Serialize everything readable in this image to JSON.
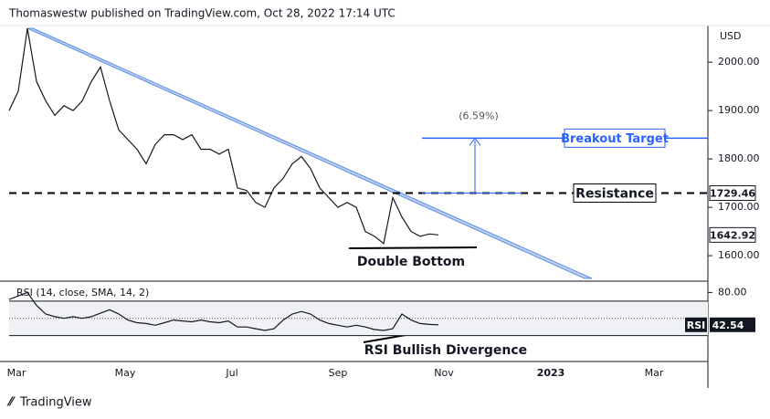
{
  "header": "Thomaswestw published on TradingView.com, Oct 28, 2022 17:14 UTC",
  "footer": "TradingView",
  "xtick_labels": [
    "Mar",
    "May",
    "Jul",
    "Sep",
    "Nov",
    "2023",
    "Mar"
  ],
  "chart_data": [
    {
      "type": "line",
      "axis_label": "USD",
      "color": "#131722",
      "values": [
        1900,
        1940,
        2070,
        1960,
        1920,
        1890,
        1910,
        1900,
        1920,
        1960,
        1990,
        1920,
        1860,
        1840,
        1820,
        1790,
        1830,
        1850,
        1850,
        1840,
        1850,
        1820,
        1820,
        1810,
        1820,
        1740,
        1735,
        1710,
        1700,
        1740,
        1760,
        1790,
        1805,
        1780,
        1740,
        1720,
        1700,
        1710,
        1700,
        1650,
        1640,
        1625,
        1720,
        1680,
        1650,
        1640,
        1645,
        1643
      ],
      "ylim": [
        1553,
        2072
      ],
      "yticks": [
        {
          "value": 1600,
          "label": "1600.00"
        },
        {
          "value": 1700,
          "label": "1700.00"
        },
        {
          "value": 1800,
          "label": "1800.00"
        },
        {
          "value": 1900,
          "label": "1900.00"
        },
        {
          "value": 2000,
          "label": "2000.00"
        }
      ],
      "price_markers": [
        {
          "value": 1729.46,
          "label": "1729.46"
        },
        {
          "value": 1642.92,
          "label": "1642.92"
        }
      ],
      "resistance_label": "Resistance",
      "target": {
        "value": 1843,
        "label": "Breakout Target",
        "change": "(6.59%)"
      },
      "pattern_label": "Double Bottom"
    },
    {
      "type": "line",
      "title": "RSI (14, close, SMA, 14, 2)",
      "color": "#131722",
      "values": [
        72,
        76,
        80,
        65,
        55,
        52,
        50,
        52,
        50,
        52,
        56,
        60,
        55,
        48,
        45,
        44,
        42,
        45,
        48,
        47,
        46,
        48,
        46,
        45,
        47,
        40,
        40,
        38,
        36,
        38,
        48,
        55,
        58,
        55,
        48,
        44,
        42,
        40,
        42,
        40,
        37,
        36,
        38,
        55,
        48,
        44,
        43,
        42.54
      ],
      "ylim": [
        0,
        91
      ],
      "yticks": [
        {
          "value": 80,
          "label": "80.00"
        }
      ],
      "bands": [
        30,
        70
      ],
      "mid": 50,
      "tag": "RSI",
      "last": {
        "value": 42.54,
        "label": "42.54"
      },
      "annotation": "RSI Bullish Divergence"
    }
  ]
}
